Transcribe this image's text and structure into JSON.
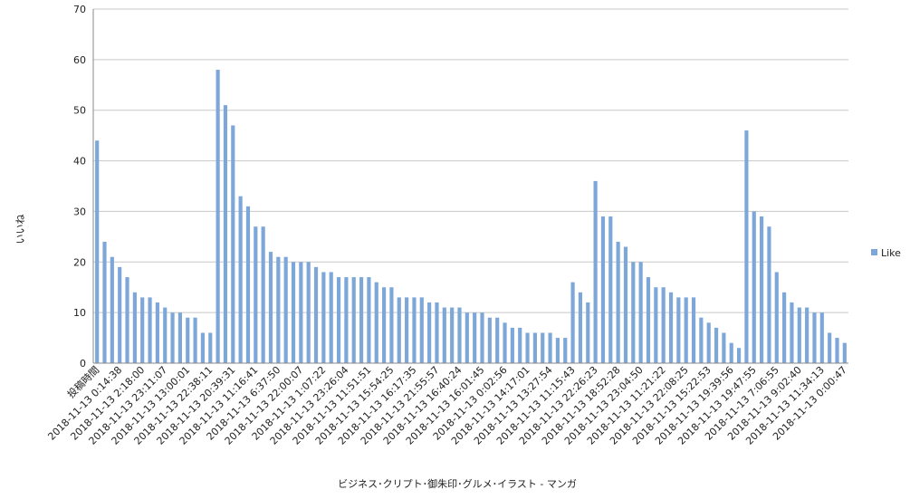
{
  "chart_data": {
    "type": "bar",
    "xlabel": "ビジネス･クリプト･御朱印･グルメ･イラスト - マンガ",
    "ylabel": "いいね",
    "ylim": [
      0,
      70
    ],
    "yticks": [
      0,
      10,
      20,
      30,
      40,
      50,
      60,
      70
    ],
    "grid": true,
    "legend": {
      "position": "right",
      "entries": [
        "Like"
      ]
    },
    "colors": {
      "bar": "#7da7d9",
      "grid": "#c8c8c8",
      "axis": "#888888"
    },
    "xtick_labels": [
      "投稿時間",
      "2018-11-13 0:14:38",
      "2018-11-13 2:18:00",
      "2018-11-13 23:11:07",
      "2018-11-13 13:00:01",
      "2018-11-13 22:38:11",
      "2018-11-13 20:39:31",
      "2018-11-13 11:16:41",
      "2018-11-13 6:37:50",
      "2018-11-13 22:00:07",
      "2018-11-13 1:07:22",
      "2018-11-13 23:26:04",
      "2018-11-13 11:51:51",
      "2018-11-13 15:54:25",
      "2018-11-13 16:17:35",
      "2018-11-13 21:55:57",
      "2018-11-13 16:40:24",
      "2018-11-13 16:01:45",
      "2018-11-13 0:02:56",
      "2018-11-13 14:17:01",
      "2018-11-13 13:27:54",
      "2018-11-13 11:15:43",
      "2018-11-13 22:26:23",
      "2018-11-13 18:52:28",
      "2018-11-13 23:04:50",
      "2018-11-13 11:21:22",
      "2018-11-13 22:08:25",
      "2018-11-13 15:22:53",
      "2018-11-13 19:39:56",
      "2018-11-13 19:47:55",
      "2018-11-13 7:06:55",
      "2018-11-13 9:02:40",
      "2018-11-13 11:34:13",
      "2018-11-13 0:00:47"
    ],
    "series": [
      {
        "name": "Like",
        "values": [
          44,
          24,
          21,
          19,
          17,
          14,
          13,
          13,
          12,
          11,
          10,
          10,
          9,
          9,
          6,
          6,
          58,
          51,
          47,
          33,
          31,
          27,
          27,
          22,
          21,
          21,
          20,
          20,
          20,
          19,
          18,
          18,
          17,
          17,
          17,
          17,
          17,
          16,
          15,
          15,
          13,
          13,
          13,
          13,
          12,
          12,
          11,
          11,
          11,
          10,
          10,
          10,
          9,
          9,
          8,
          7,
          7,
          6,
          6,
          6,
          6,
          5,
          5,
          16,
          14,
          12,
          36,
          29,
          29,
          24,
          23,
          20,
          20,
          17,
          15,
          15,
          14,
          13,
          13,
          13,
          9,
          8,
          7,
          6,
          4,
          3,
          46,
          30,
          29,
          27,
          18,
          14,
          12,
          11,
          11,
          10,
          10,
          6,
          5,
          4
        ]
      }
    ]
  }
}
